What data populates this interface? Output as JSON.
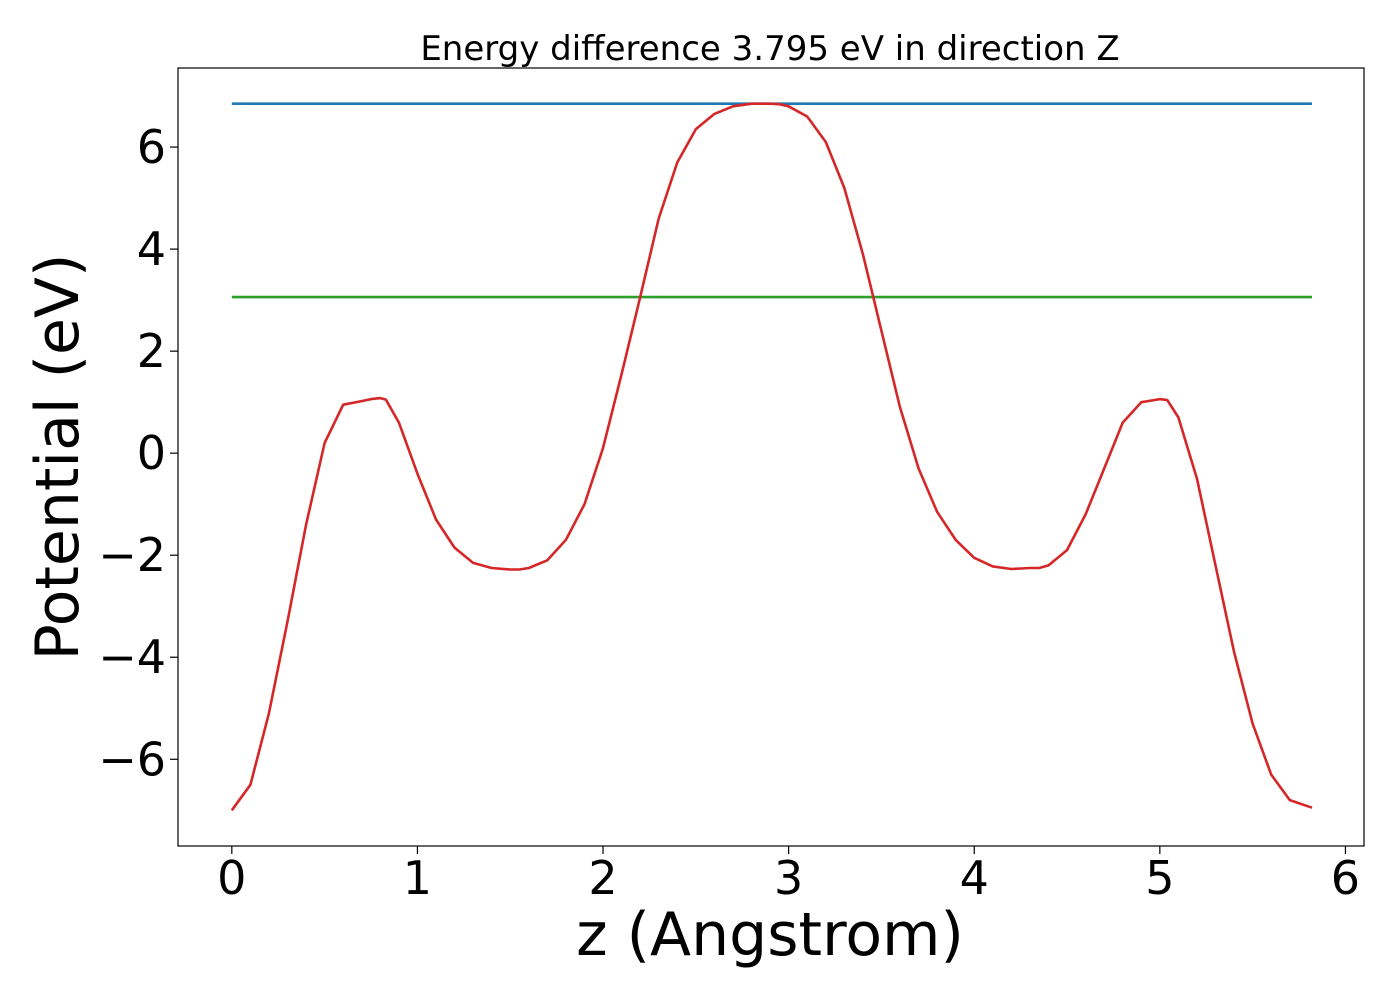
{
  "chart_data": {
    "type": "line",
    "title": "Energy difference 3.795 eV in direction Z",
    "xlabel": "z (Angstrom)",
    "ylabel": "Potential (eV)",
    "xlim": [
      -0.29,
      6.1
    ],
    "ylim": [
      -7.7,
      7.55
    ],
    "xticks": [
      {
        "value": 0,
        "label": "0"
      },
      {
        "value": 1,
        "label": "1"
      },
      {
        "value": 2,
        "label": "2"
      },
      {
        "value": 3,
        "label": "3"
      },
      {
        "value": 4,
        "label": "4"
      },
      {
        "value": 5,
        "label": "5"
      },
      {
        "value": 6,
        "label": "6"
      }
    ],
    "yticks": [
      {
        "value": -6,
        "label": "−6"
      },
      {
        "value": -4,
        "label": "−4"
      },
      {
        "value": -2,
        "label": "−2"
      },
      {
        "value": 0,
        "label": "0"
      },
      {
        "value": 2,
        "label": "2"
      },
      {
        "value": 4,
        "label": "4"
      },
      {
        "value": 6,
        "label": "6"
      }
    ],
    "grid": false,
    "legend": "none",
    "series": [
      {
        "color": "#1f77b4",
        "x": [
          0,
          5.82
        ],
        "y": [
          6.85,
          6.85
        ]
      },
      {
        "color": "#2ca02c",
        "x": [
          0,
          5.82
        ],
        "y": [
          3.06,
          3.06
        ]
      },
      {
        "color": "#d62728",
        "x": [
          0,
          0.1,
          0.2,
          0.3,
          0.4,
          0.5,
          0.6,
          0.7,
          0.75,
          0.8,
          0.83,
          0.9,
          1.0,
          1.1,
          1.2,
          1.3,
          1.4,
          1.5,
          1.55,
          1.6,
          1.7,
          1.8,
          1.9,
          2.0,
          2.1,
          2.2,
          2.3,
          2.4,
          2.5,
          2.6,
          2.7,
          2.8,
          2.9,
          2.95,
          3.0,
          3.1,
          3.2,
          3.3,
          3.4,
          3.5,
          3.6,
          3.7,
          3.8,
          3.9,
          4.0,
          4.1,
          4.2,
          4.3,
          4.35,
          4.4,
          4.5,
          4.6,
          4.7,
          4.8,
          4.9,
          5.0,
          5.04,
          5.1,
          5.2,
          5.3,
          5.4,
          5.5,
          5.6,
          5.7,
          5.82
        ],
        "y": [
          -7.0,
          -6.5,
          -5.1,
          -3.3,
          -1.4,
          0.2,
          0.95,
          1.02,
          1.06,
          1.08,
          1.05,
          0.6,
          -0.4,
          -1.3,
          -1.85,
          -2.15,
          -2.25,
          -2.28,
          -2.28,
          -2.25,
          -2.1,
          -1.7,
          -1.0,
          0.1,
          1.55,
          3.06,
          4.6,
          5.7,
          6.35,
          6.65,
          6.8,
          6.85,
          6.85,
          6.84,
          6.8,
          6.6,
          6.1,
          5.2,
          3.9,
          2.4,
          0.9,
          -0.3,
          -1.15,
          -1.7,
          -2.05,
          -2.22,
          -2.27,
          -2.25,
          -2.25,
          -2.2,
          -1.9,
          -1.2,
          -0.3,
          0.6,
          1.0,
          1.06,
          1.04,
          0.7,
          -0.5,
          -2.2,
          -3.9,
          -5.3,
          -6.3,
          -6.8,
          -6.95
        ]
      }
    ]
  }
}
